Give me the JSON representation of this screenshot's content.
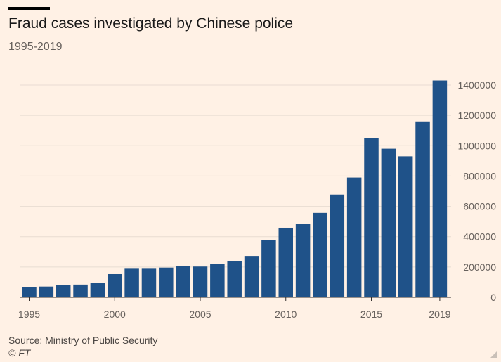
{
  "header": {
    "title": "Fraud cases investigated by Chinese police",
    "subtitle": "1995-2019"
  },
  "footer": {
    "source": "Source: Ministry of Public Security",
    "copyright": "© FT"
  },
  "colors": {
    "background": "#fff1e5",
    "bar": "#1f5289",
    "grid": "#e8dcd2",
    "axis_text": "#66605c"
  },
  "chart_data": {
    "type": "bar",
    "title": "Fraud cases investigated by Chinese police",
    "subtitle": "1995-2019",
    "xlabel": "",
    "ylabel": "",
    "categories": [
      "1995",
      "1996",
      "1997",
      "1998",
      "1999",
      "2000",
      "2001",
      "2002",
      "2003",
      "2004",
      "2005",
      "2006",
      "2007",
      "2008",
      "2009",
      "2010",
      "2011",
      "2012",
      "2013",
      "2014",
      "2015",
      "2016",
      "2017",
      "2018",
      "2019"
    ],
    "values": [
      65000,
      71000,
      79000,
      84000,
      94000,
      153000,
      193000,
      193000,
      196000,
      205000,
      203000,
      218000,
      239000,
      273000,
      380000,
      459000,
      483000,
      557000,
      678000,
      790000,
      1050000,
      980000,
      930000,
      1160000,
      1430000
    ],
    "x_tick_labels": [
      "1995",
      "2000",
      "2005",
      "2010",
      "2015",
      "2019"
    ],
    "y_tick_labels": [
      "0",
      "200000",
      "400000",
      "600000",
      "800000",
      "1000000",
      "1200000",
      "1400000"
    ],
    "y_ticks": [
      0,
      200000,
      400000,
      600000,
      800000,
      1000000,
      1200000,
      1400000
    ],
    "ylim": [
      0,
      1400000
    ],
    "y_axis_position": "right",
    "grid": true,
    "legend": "none"
  }
}
